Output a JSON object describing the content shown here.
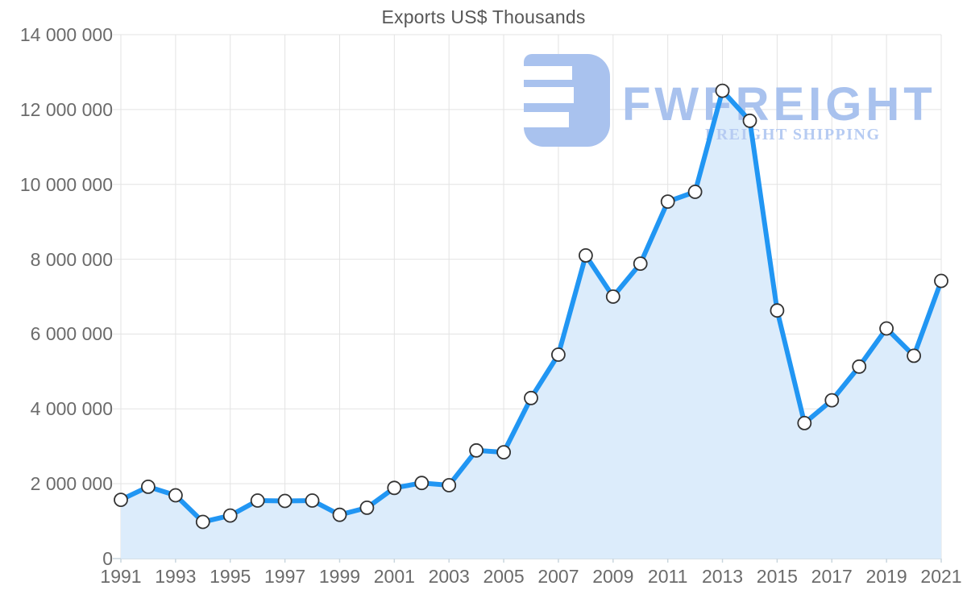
{
  "title": "Exports US$ Thousands",
  "watermark": {
    "brand": "FWFREIGHT",
    "tagline": "FREIGHT SHIPPING",
    "logo_color": "#a9c2ee",
    "brand_color": "#a9c2ee",
    "tagline_color": "#b6cbf2"
  },
  "colors": {
    "line": "#2196f3",
    "area": "#dcecfb",
    "marker_fill": "#ffffff",
    "marker_stroke": "#333333",
    "grid": "#e3e3e3",
    "axis_line": "#c9d6de",
    "tick_text": "#6b6b6b",
    "title_text": "#575757"
  },
  "chart_data": {
    "type": "area",
    "title": "Exports US$ Thousands",
    "xlabel": "",
    "ylabel": "",
    "grid": true,
    "legend": "none",
    "x": [
      1991,
      1992,
      1993,
      1994,
      1995,
      1996,
      1997,
      1998,
      1999,
      2000,
      2001,
      2002,
      2003,
      2004,
      2005,
      2006,
      2007,
      2008,
      2009,
      2010,
      2011,
      2012,
      2013,
      2014,
      2015,
      2016,
      2017,
      2018,
      2019,
      2020,
      2021
    ],
    "values": [
      1570000,
      1920000,
      1690000,
      980000,
      1150000,
      1550000,
      1540000,
      1550000,
      1170000,
      1360000,
      1890000,
      2020000,
      1960000,
      2890000,
      2840000,
      4290000,
      5450000,
      8100000,
      7000000,
      7880000,
      9540000,
      9800000,
      12500000,
      11700000,
      6630000,
      3620000,
      4230000,
      5130000,
      6150000,
      5420000,
      7420000
    ],
    "ylim": [
      0,
      14000000
    ],
    "y_ticks": [
      {
        "value": 0,
        "label": "0"
      },
      {
        "value": 2000000,
        "label": "2 000 000"
      },
      {
        "value": 4000000,
        "label": "4 000 000"
      },
      {
        "value": 6000000,
        "label": "6 000 000"
      },
      {
        "value": 8000000,
        "label": "8 000 000"
      },
      {
        "value": 10000000,
        "label": "10 000 000"
      },
      {
        "value": 12000000,
        "label": "12 000 000"
      },
      {
        "value": 14000000,
        "label": "14 000 000"
      }
    ],
    "x_tick_labels": [
      "1991",
      "1993",
      "1995",
      "1997",
      "1999",
      "2001",
      "2003",
      "2005",
      "2007",
      "2009",
      "2011",
      "2013",
      "2015",
      "2017",
      "2019",
      "2021"
    ]
  }
}
